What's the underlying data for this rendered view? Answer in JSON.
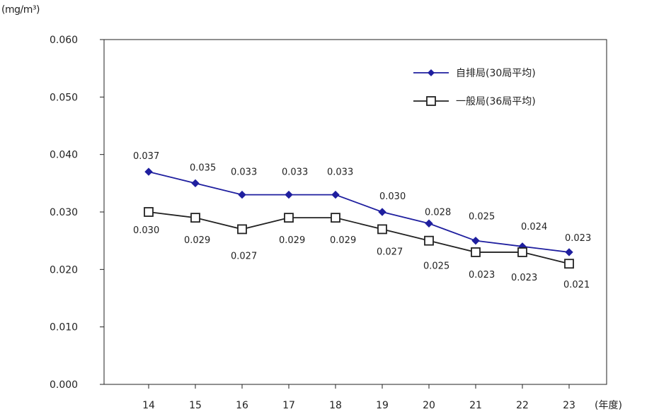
{
  "chart_data": {
    "type": "line",
    "y_unit": "(mg/m³)",
    "x_unit": "(年度)",
    "categories": [
      "14",
      "15",
      "16",
      "17",
      "18",
      "19",
      "20",
      "21",
      "22",
      "23"
    ],
    "ylim": [
      0.0,
      0.06
    ],
    "yticks": [
      "0.000",
      "0.010",
      "0.020",
      "0.030",
      "0.040",
      "0.050",
      "0.060"
    ],
    "grid": false,
    "legend_position": "top-right",
    "series": [
      {
        "name": "自排局(30局平均)",
        "color": "#1f1f9f",
        "marker": "diamond",
        "values": [
          0.037,
          0.035,
          0.033,
          0.033,
          0.033,
          0.03,
          0.028,
          0.025,
          0.024,
          0.023
        ],
        "labels": [
          "0.037",
          "0.035",
          "0.033",
          "0.033",
          "0.033",
          "0.030",
          "0.028",
          "0.025",
          "0.024",
          "0.023"
        ]
      },
      {
        "name": "一般局(36局平均)",
        "color": "#222222",
        "marker": "square-open",
        "values": [
          0.03,
          0.029,
          0.027,
          0.029,
          0.029,
          0.027,
          0.025,
          0.023,
          0.023,
          0.021
        ],
        "labels": [
          "0.030",
          "0.029",
          "0.027",
          "0.029",
          "0.029",
          "0.027",
          "0.025",
          "0.023",
          "0.023",
          "0.021"
        ]
      }
    ]
  }
}
